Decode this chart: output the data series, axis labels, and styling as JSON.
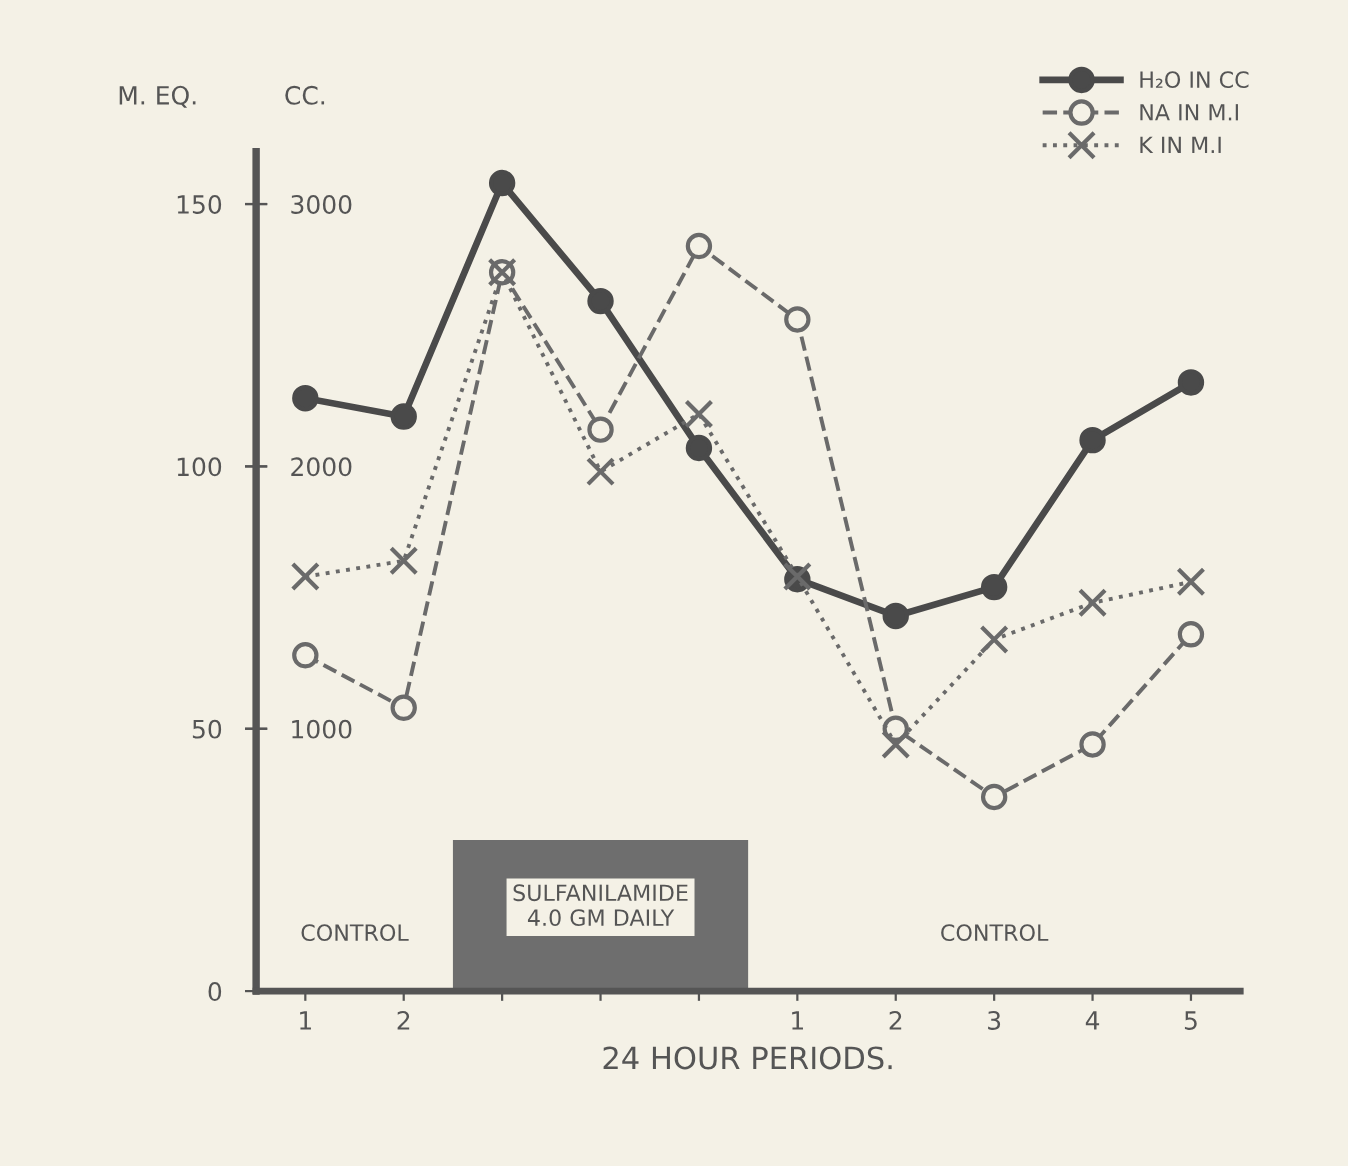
{
  "chart_data": {
    "type": "line",
    "categories": [
      "1",
      "2",
      null,
      null,
      null,
      "1",
      "2",
      "3",
      "4",
      "5"
    ],
    "xlabel": "24 HOUR PERIODS.",
    "ylabel": "M. EQ.",
    "y2label": "CC.",
    "ylim": [
      0,
      160
    ],
    "yticks": [
      0,
      50,
      100,
      150
    ],
    "y2lim": [
      0,
      3200
    ],
    "y2ticks": [
      1000,
      2000,
      3000
    ],
    "series": [
      {
        "name": "H₂O IN CC",
        "color": "#4a4a4a",
        "axis": "y2",
        "marker": "circle",
        "line_style": "solid",
        "values": [
          2260,
          2190,
          3080,
          2630,
          2070,
          1570,
          1430,
          1540,
          2100,
          2320
        ]
      },
      {
        "name": "NA IN M.I",
        "color": "#6a6a6a",
        "marker": "circle",
        "line_style": "dashed",
        "values": [
          64,
          54,
          137,
          107,
          142,
          128,
          50,
          37,
          47,
          68
        ]
      },
      {
        "name": "K IN M.I",
        "color": "#6a6a6a",
        "marker": "cross",
        "line_style": "dotted",
        "values": [
          79,
          82,
          137,
          99,
          110,
          79,
          47,
          67,
          74,
          78
        ]
      }
    ],
    "annotations": [
      "CONTROL",
      "SULFANILAMIDE\n4.0 GM DAILY",
      "CONTROL"
    ],
    "legend": "top right",
    "grid": false
  }
}
